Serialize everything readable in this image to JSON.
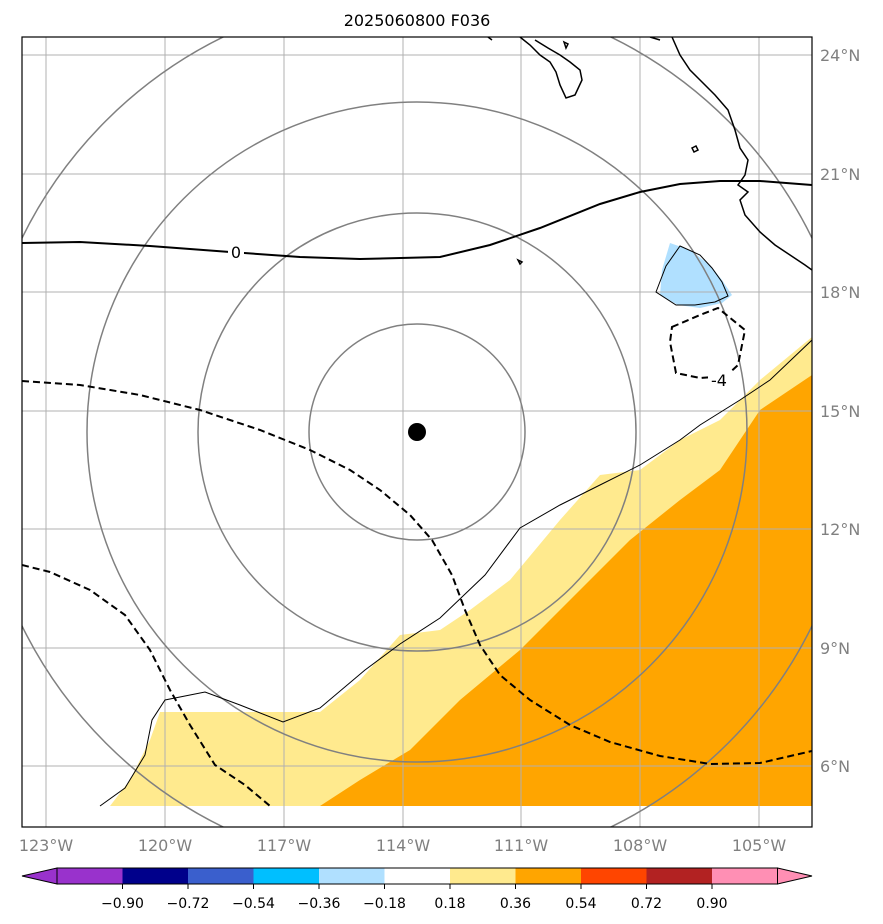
{
  "title": "2025060800 F036",
  "lon_ticks": [
    "123°W",
    "120°W",
    "117°W",
    "114°W",
    "111°W",
    "108°W",
    "105°W"
  ],
  "lat_ticks": [
    "24°N",
    "21°N",
    "18°N",
    "15°N",
    "12°N",
    "9°N",
    "6°N"
  ],
  "contour_labels": {
    "zero": "0",
    "minus4": "-4"
  },
  "colorbar": {
    "ticks": [
      "−0.90",
      "−0.72",
      "−0.54",
      "−0.36",
      "−0.18",
      "0.18",
      "0.36",
      "0.54",
      "0.72",
      "0.90"
    ],
    "colors": [
      "#9932cc",
      "#00008b",
      "#3a5fcd",
      "#00bfff",
      "#b0e0ff",
      "#ffffff",
      "#ffea8e",
      "#ffa500",
      "#ff4500",
      "#b22222",
      "#ff8fb4"
    ]
  },
  "colors": {
    "range_rings": "#808080",
    "gridlines": "#b0b0b0",
    "coastline": "#000000",
    "center_marker": "#000000",
    "positive_low": "#ffea8e",
    "positive_mid": "#ffa500",
    "negative_low": "#b0e0ff"
  }
}
